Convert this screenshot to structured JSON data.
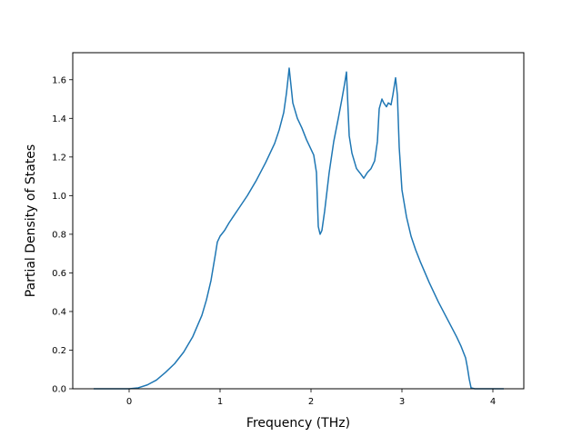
{
  "chart_data": {
    "type": "line",
    "xlabel": "Frequency (THz)",
    "ylabel": "Partial Density of States",
    "xlim": [
      -0.62,
      4.34
    ],
    "ylim": [
      0.0,
      1.74
    ],
    "x_ticks": [
      0,
      1,
      2,
      3,
      4
    ],
    "y_ticks": [
      0.0,
      0.2,
      0.4,
      0.6,
      0.8,
      1.0,
      1.2,
      1.4,
      1.6
    ],
    "x_tick_labels": [
      "0",
      "1",
      "2",
      "3",
      "4"
    ],
    "y_tick_labels": [
      "0.0",
      "0.2",
      "0.4",
      "0.6",
      "0.8",
      "1.0",
      "1.2",
      "1.4",
      "1.6"
    ],
    "grid": false,
    "legend": "none",
    "line_color": "#1f77b4",
    "series": [
      {
        "x": [
          -0.39,
          -0.1,
          0.0,
          0.1,
          0.2,
          0.3,
          0.4,
          0.5,
          0.6,
          0.7,
          0.8,
          0.85,
          0.9,
          0.95,
          0.97,
          1.0,
          1.05,
          1.1,
          1.2,
          1.3,
          1.4,
          1.5,
          1.6,
          1.65,
          1.7,
          1.73,
          1.76,
          1.8,
          1.85,
          1.9,
          1.95,
          2.0,
          2.03,
          2.06,
          2.08,
          2.1,
          2.12,
          2.15,
          2.2,
          2.25,
          2.3,
          2.34,
          2.37,
          2.39,
          2.42,
          2.45,
          2.5,
          2.55,
          2.58,
          2.62,
          2.66,
          2.7,
          2.73,
          2.75,
          2.78,
          2.8,
          2.83,
          2.85,
          2.88,
          2.9,
          2.93,
          2.95,
          2.97,
          3.0,
          3.05,
          3.1,
          3.15,
          3.2,
          3.3,
          3.4,
          3.5,
          3.6,
          3.65,
          3.7,
          3.72,
          3.74,
          3.76,
          3.8,
          3.9,
          4.0,
          4.12
        ],
        "y": [
          0.0,
          0.0,
          0.0,
          0.005,
          0.02,
          0.045,
          0.085,
          0.13,
          0.19,
          0.27,
          0.38,
          0.46,
          0.56,
          0.7,
          0.76,
          0.79,
          0.82,
          0.86,
          0.93,
          1.0,
          1.08,
          1.17,
          1.27,
          1.34,
          1.43,
          1.53,
          1.66,
          1.48,
          1.4,
          1.35,
          1.29,
          1.24,
          1.21,
          1.12,
          0.84,
          0.8,
          0.82,
          0.92,
          1.12,
          1.28,
          1.4,
          1.5,
          1.58,
          1.64,
          1.31,
          1.22,
          1.14,
          1.11,
          1.09,
          1.12,
          1.14,
          1.18,
          1.28,
          1.45,
          1.5,
          1.48,
          1.46,
          1.48,
          1.47,
          1.52,
          1.61,
          1.52,
          1.25,
          1.03,
          0.89,
          0.79,
          0.72,
          0.66,
          0.55,
          0.45,
          0.36,
          0.27,
          0.22,
          0.16,
          0.11,
          0.05,
          0.005,
          0.0,
          0.0,
          0.0,
          0.0
        ]
      }
    ]
  }
}
